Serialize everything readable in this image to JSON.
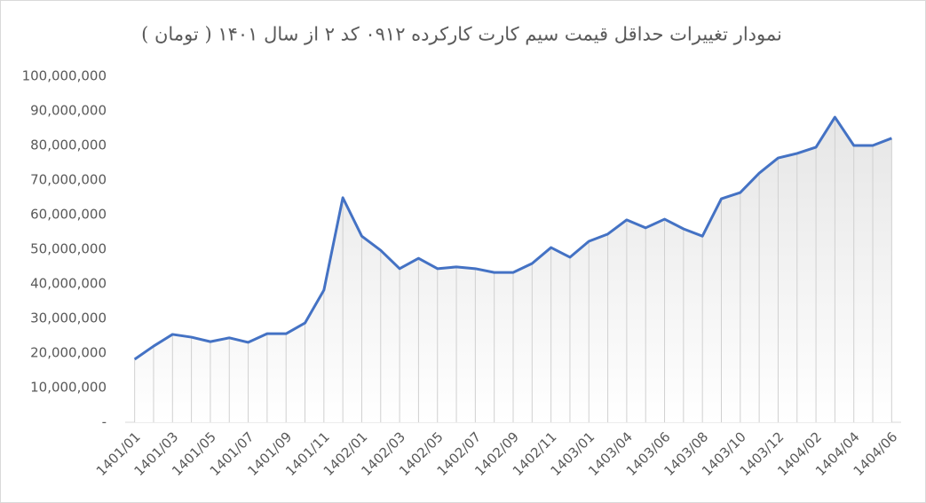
{
  "chart_data": {
    "type": "line",
    "title": "نمودار تغییرات حداقل قیمت سیم کارت کارکرده ۰۹۱۲ کد ۲ از سال ۱۴۰۱ ( تومان )",
    "categories": [
      "1401/01",
      null,
      "1401/03",
      null,
      "1401/05",
      null,
      "1401/07",
      null,
      "1401/09",
      null,
      "1401/11",
      null,
      "1402/01",
      null,
      "1402/03",
      null,
      "1402/05",
      null,
      "1402/07",
      null,
      "1402/09",
      null,
      "1402/11",
      null,
      "1403/01",
      null,
      "1403/04",
      null,
      "1403/06",
      null,
      "1403/08",
      null,
      "1403/10",
      null,
      "1403/12",
      null,
      "1404/02",
      null,
      "1404/04",
      null,
      "1404/06"
    ],
    "series": [
      {
        "color": "#4472c4",
        "values": [
          18200000,
          22000000,
          25400000,
          24600000,
          23300000,
          24400000,
          23100000,
          25600000,
          25600000,
          28700000,
          38200000,
          64900000,
          53800000,
          49700000,
          44400000,
          47400000,
          44400000,
          44900000,
          44400000,
          43300000,
          43300000,
          45900000,
          50500000,
          47700000,
          52300000,
          54400000,
          58500000,
          56200000,
          58700000,
          55900000,
          53800000,
          64600000,
          66400000,
          72000000,
          76400000,
          77700000,
          79500000,
          88200000,
          80000000,
          80000000,
          82100000
        ]
      }
    ],
    "ylim": [
      0,
      100000000
    ],
    "yticks": [
      {
        "value": 0,
        "label": "-"
      },
      {
        "value": 10000000,
        "label": "10,000,000"
      },
      {
        "value": 20000000,
        "label": "20,000,000"
      },
      {
        "value": 30000000,
        "label": "30,000,000"
      },
      {
        "value": 40000000,
        "label": "40,000,000"
      },
      {
        "value": 50000000,
        "label": "50,000,000"
      },
      {
        "value": 60000000,
        "label": "60,000,000"
      },
      {
        "value": 70000000,
        "label": "70,000,000"
      },
      {
        "value": 80000000,
        "label": "80,000,000"
      },
      {
        "value": 90000000,
        "label": "90,000,000"
      },
      {
        "value": 100000000,
        "label": "100,000,000"
      }
    ],
    "grid": false
  }
}
